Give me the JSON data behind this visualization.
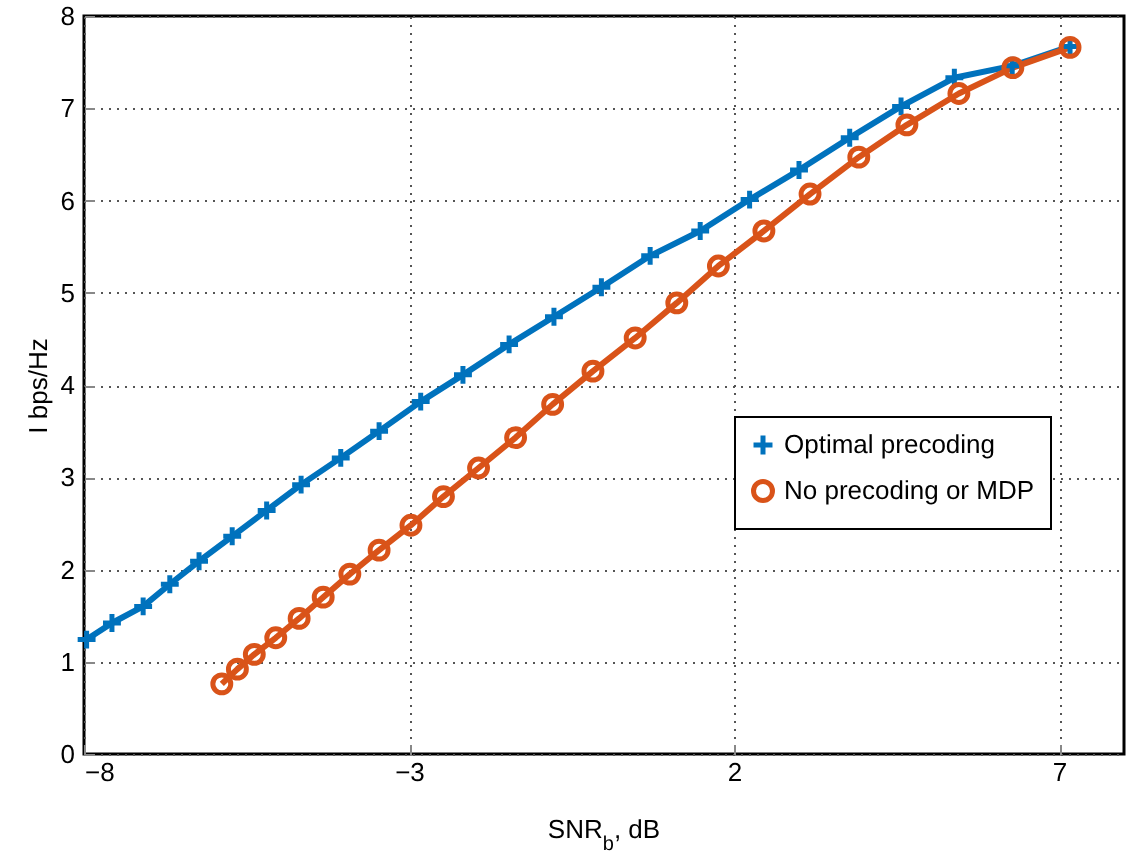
{
  "chart_data": {
    "type": "line",
    "xlabel": "SNR$_{b}$, dB",
    "ylabel": "I bps/Hz",
    "xlim": [
      -8,
      8
    ],
    "ylim": [
      0,
      8
    ],
    "xticks": [
      -8,
      -3,
      2,
      7
    ],
    "yticks": [
      0,
      1,
      2,
      3,
      4,
      5,
      6,
      7,
      8
    ],
    "grid": true,
    "legend": "right",
    "line_style": "solid",
    "series": [
      {
        "name": "Optimal precoding",
        "color": "#0072bd",
        "marker": "cross",
        "x": [
          -7.96,
          -7.57,
          -7.09,
          -6.68,
          -6.23,
          -5.72,
          -5.19,
          -4.66,
          -4.05,
          -3.46,
          -2.82,
          -2.17,
          -1.46,
          -0.77,
          -0.04,
          0.71,
          1.48,
          2.24,
          3.0,
          3.78,
          4.57,
          5.39,
          6.28,
          7.17
        ],
        "values": [
          1.24,
          1.42,
          1.6,
          1.84,
          2.09,
          2.36,
          2.64,
          2.92,
          3.21,
          3.5,
          3.82,
          4.11,
          4.44,
          4.74,
          5.06,
          5.4,
          5.67,
          6.01,
          6.33,
          6.68,
          7.02,
          7.33,
          7.46,
          7.67
        ]
      },
      {
        "name": "No precoding or MDP",
        "color": "#d95319",
        "marker": "circle",
        "x": [
          -5.88,
          -5.64,
          -5.38,
          -5.05,
          -4.69,
          -4.32,
          -3.91,
          -3.46,
          -2.97,
          -2.47,
          -1.93,
          -1.36,
          -0.79,
          -0.17,
          0.48,
          1.12,
          1.76,
          2.46,
          3.17,
          3.92,
          4.66,
          5.46,
          6.29,
          7.17
        ],
        "values": [
          0.76,
          0.92,
          1.08,
          1.26,
          1.47,
          1.7,
          1.95,
          2.21,
          2.48,
          2.79,
          3.1,
          3.43,
          3.79,
          4.15,
          4.51,
          4.89,
          5.29,
          5.67,
          6.07,
          6.47,
          6.82,
          7.16,
          7.44,
          7.66
        ]
      }
    ]
  }
}
